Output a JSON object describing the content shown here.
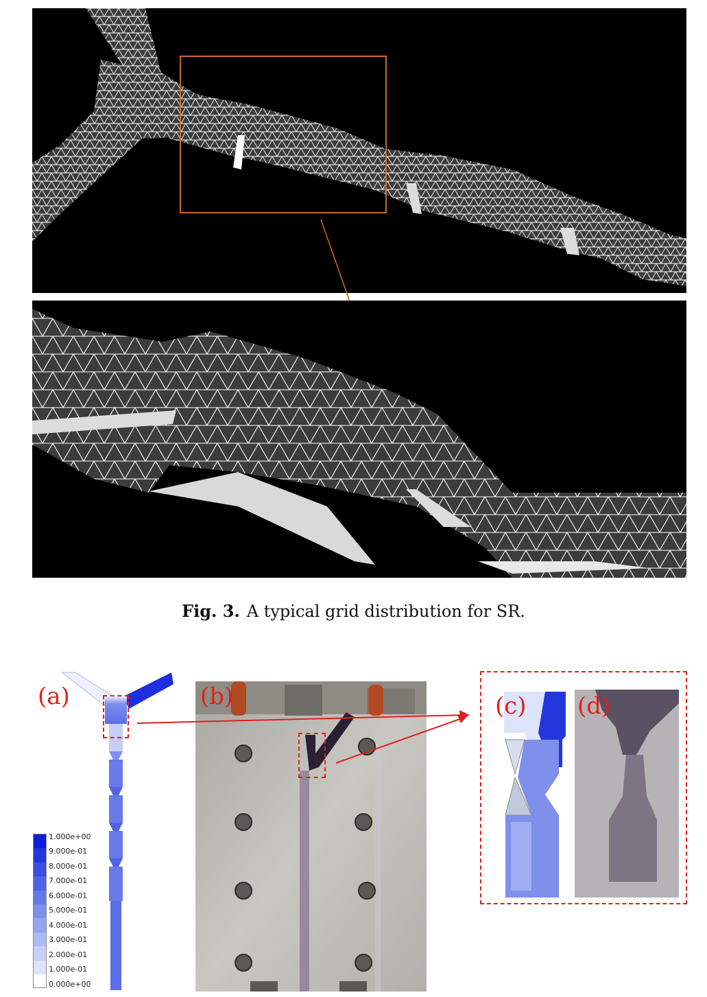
{
  "figure3": {
    "label": "Fig. 3.",
    "caption": "A typical grid distribution for SR."
  },
  "figure4": {
    "panel_labels": {
      "a": "(a)",
      "b": "(b)",
      "c": "(c)",
      "d": "(d)"
    },
    "legend": [
      "1.000e+00",
      "9.000e-01",
      "8.000e-01",
      "7.000e-01",
      "6.000e-01",
      "5.000e-01",
      "4.000e-01",
      "3.000e-01",
      "2.000e-01",
      "1.000e-01",
      "0.000e+00"
    ],
    "legend_colors": [
      "#0d1fd8",
      "#2437dc",
      "#3a4ee0",
      "#5063e4",
      "#6879e8",
      "#7f8fec",
      "#97a4f0",
      "#aebaf3",
      "#c6cff7",
      "#dde3fb",
      "#ffffff"
    ]
  },
  "colors": {
    "mesh_background": "#000000",
    "mesh_fill": "#3c3c3c",
    "mesh_lines": "#ffffff",
    "zoom_box": "#c76a28",
    "annotation_red": "#e0201b",
    "contour_blue": "#1d2fe0"
  }
}
